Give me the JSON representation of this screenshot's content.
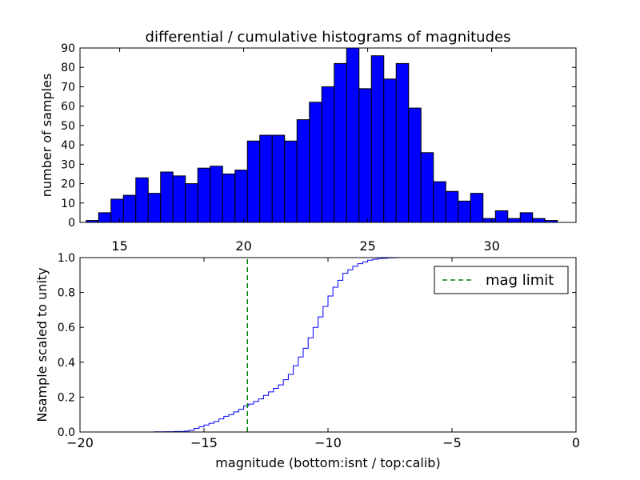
{
  "chart_data": [
    {
      "type": "bar",
      "title": "differential / cumulative histograms of magnitudes",
      "xlabel": "",
      "ylabel": "number of samples",
      "xlim": [
        13.4,
        33.4
      ],
      "ylim": [
        0,
        90
      ],
      "xticks": [
        "15",
        "20",
        "25",
        "30"
      ],
      "yticks": [
        "0",
        "10",
        "20",
        "30",
        "40",
        "50",
        "60",
        "70",
        "80",
        "90"
      ],
      "grid": false,
      "bar_color": "#0000ff",
      "bin_width": 0.5,
      "x": [
        13.9,
        14.4,
        14.9,
        15.4,
        15.9,
        16.4,
        16.9,
        17.4,
        17.9,
        18.4,
        18.9,
        19.4,
        19.9,
        20.4,
        20.9,
        21.4,
        21.9,
        22.4,
        22.9,
        23.4,
        23.9,
        24.4,
        24.9,
        25.4,
        25.9,
        26.4,
        26.9,
        27.4,
        27.9,
        28.4,
        28.9,
        29.4,
        29.9,
        30.4,
        30.9,
        31.4,
        31.9,
        32.4
      ],
      "values": [
        1,
        5,
        12,
        14,
        23,
        15,
        26,
        24,
        20,
        28,
        29,
        25,
        27,
        42,
        45,
        45,
        42,
        53,
        62,
        70,
        82,
        90,
        69,
        86,
        74,
        82,
        59,
        36,
        21,
        16,
        11,
        15,
        2,
        6,
        2,
        5,
        2,
        1
      ]
    },
    {
      "type": "line",
      "xlabel": "magnitude (bottom:isnt / top:calib)",
      "ylabel": "Nsample scaled to unity",
      "xlim": [
        -20,
        0
      ],
      "ylim": [
        0.0,
        1.0
      ],
      "xticks": [
        "−20",
        "−15",
        "−10",
        "−5",
        "0"
      ],
      "yticks": [
        "0.0",
        "0.2",
        "0.4",
        "0.6",
        "0.8",
        "1.0"
      ],
      "grid": false,
      "legend_position": "top-right",
      "step_color": "#0000ff",
      "x": [
        -20.0,
        -17.0,
        -16.6,
        -16.2,
        -15.8,
        -15.6,
        -15.4,
        -15.2,
        -15.0,
        -14.8,
        -14.6,
        -14.4,
        -14.2,
        -14.0,
        -13.8,
        -13.6,
        -13.4,
        -13.2,
        -13.0,
        -12.8,
        -12.6,
        -12.4,
        -12.2,
        -12.0,
        -11.8,
        -11.6,
        -11.4,
        -11.2,
        -11.0,
        -10.8,
        -10.6,
        -10.4,
        -10.2,
        -10.0,
        -9.8,
        -9.6,
        -9.4,
        -9.2,
        -9.0,
        -8.8,
        -8.6,
        -8.4,
        -8.2,
        -8.0,
        -7.8,
        -7.6,
        -7.4,
        -7.2,
        -7.0,
        0.0
      ],
      "y": [
        0.0,
        0.001,
        0.002,
        0.003,
        0.005,
        0.01,
        0.02,
        0.03,
        0.04,
        0.05,
        0.06,
        0.075,
        0.09,
        0.1,
        0.115,
        0.13,
        0.15,
        0.16,
        0.175,
        0.19,
        0.21,
        0.23,
        0.25,
        0.27,
        0.3,
        0.33,
        0.38,
        0.43,
        0.48,
        0.54,
        0.6,
        0.66,
        0.72,
        0.78,
        0.83,
        0.87,
        0.91,
        0.93,
        0.95,
        0.965,
        0.975,
        0.985,
        0.99,
        0.994,
        0.996,
        0.998,
        0.999,
        1.0,
        1.0,
        1.0
      ],
      "series": [
        {
          "name": "mag limit",
          "type": "vline",
          "x": -13.25,
          "color": "#008000",
          "dashed": true
        }
      ]
    }
  ]
}
